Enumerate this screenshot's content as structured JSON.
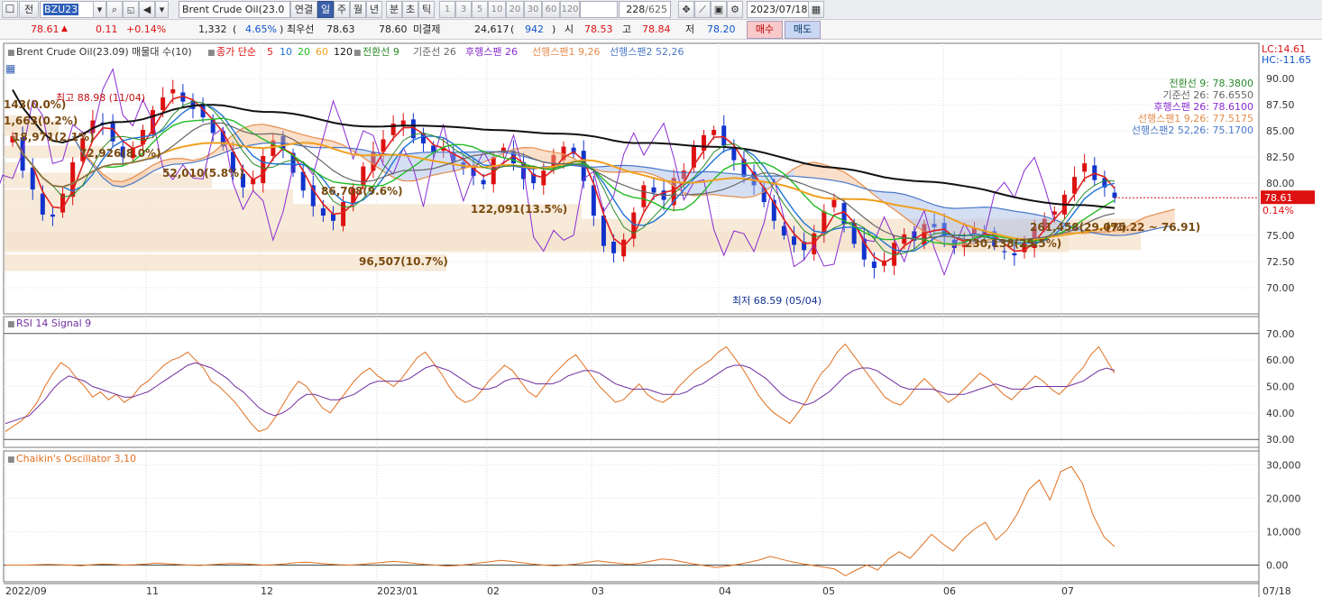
{
  "toolbar": {
    "mode_label": "전",
    "symbol_code": "BZU23",
    "symbol_name": "Brent Crude Oil(23.0",
    "link_label": "연결",
    "periods": [
      "일",
      "주",
      "월",
      "년",
      "분",
      "초",
      "틱"
    ],
    "intervals": [
      "1",
      "3",
      "5",
      "10",
      "20",
      "30",
      "60",
      "120"
    ],
    "count": "228",
    "total": "/625",
    "date": "2023/07/18"
  },
  "quote": {
    "price": "78.61",
    "change": "0.11",
    "change_pct": "+0.14%",
    "volume": "1,332",
    "vol_pct": "4.65%",
    "best_label": "최우선",
    "best_ask": "78.63",
    "best_bid": "78.60",
    "oi_label": "미결제",
    "oi": "24,617",
    "oi_chg": "942",
    "open_label": "시",
    "open": "78.53",
    "high_label": "고",
    "high": "78.84",
    "low_label": "저",
    "low": "78.20",
    "buy_label": "매수",
    "sell_label": "매도"
  },
  "colors": {
    "up": "#dd1111",
    "down": "#1133cc",
    "ma5": "#e02020",
    "ma10": "#1f74d6",
    "ma20": "#22bb22",
    "ma60": "#f0a020",
    "ma120": "#111111",
    "tenkan": "#2b8a2b",
    "kijun": "#666666",
    "chikou": "#8a2bd2",
    "spanA": "#e58c4a",
    "spanB": "#4a78c8",
    "volprofile": "#f4e3cc",
    "rsi": "#e07020",
    "signal": "#7030a0",
    "chaikin": "#e07020"
  },
  "chart_data": [
    {
      "type": "line",
      "title": "Brent Crude Oil(23.09) 매물대 수(10)",
      "legend": {
        "ma_title": "종가 단순",
        "ma": [
          "5",
          "10",
          "20",
          "60",
          "120"
        ],
        "ichimoku": [
          "전환선 9",
          "기준선 26",
          "후행스팬 26",
          "선행스팬1 9,26",
          "선행스팬2 52,26"
        ]
      },
      "lc_hc": [
        "LC:14.61",
        "HC:-11.65"
      ],
      "ylim": [
        67.5,
        92
      ],
      "y_ticks": [
        "90.00",
        "87.50",
        "85.00",
        "82.50",
        "80.00",
        "75.00",
        "72.50",
        "70.00"
      ],
      "current_price": "78.61",
      "current_pct": "0.14%",
      "x_ticks": [
        "2022/09",
        "11",
        "12",
        "2023/01",
        "02",
        "03",
        "04",
        "05",
        "06",
        "07",
        "07/18"
      ],
      "indicator_values": [
        "전환선 9: 78.3800",
        "기준선 26: 76.6550",
        "후행스팬 26: 78.6100",
        "선행스팬1 9,26: 77.5175",
        "선행스팬2 52,26: 75.1700"
      ],
      "volume_profile": [
        {
          "low": 80.5,
          "high": 82.0,
          "label": "143(0.0%)"
        },
        {
          "low": 85.0,
          "high": 86.5,
          "label": "1,663(0.2%)"
        },
        {
          "low": 84.5,
          "high": 86.0,
          "label": "18,971(2.1%)"
        },
        {
          "low": 82.4,
          "high": 83.6,
          "label": "72,926(8.0%)"
        },
        {
          "low": 79.5,
          "high": 81.0,
          "label": "52,010(5.8%)"
        },
        {
          "low": 78.0,
          "high": 79.4,
          "label": "86,708(9.6%)"
        },
        {
          "low": 76.6,
          "high": 78.0,
          "label": "122,091(13.5%)"
        },
        {
          "low": 73.6,
          "high": 76.6,
          "label": "261,458(29.0%)"
        },
        {
          "low": 73.4,
          "high": 75.4,
          "label": "230,138(25.5%)"
        },
        {
          "low": 71.6,
          "high": 73.2,
          "label": "96,507(10.7%)"
        }
      ],
      "range_label": "(75.22 ~ 76.91)",
      "max_label": "최고 88.98 (11/04)",
      "min_label": "최저 68.59 (05/04)",
      "close_series": [
        84.5,
        81.2,
        79.4,
        77.0,
        76.8,
        79.0,
        82.0,
        84.3,
        86.0,
        85.6,
        84.0,
        82.5,
        83.4,
        85.1,
        87.0,
        88.2,
        88.98,
        87.8,
        87.1,
        86.3,
        84.8,
        83.5,
        81.0,
        79.6,
        80.4,
        82.6,
        84.1,
        83.2,
        81.0,
        79.3,
        77.8,
        76.9,
        76.4,
        78.2,
        79.5,
        81.6,
        83.0,
        84.2,
        85.7,
        86.0,
        84.3,
        83.8,
        82.9,
        83.4,
        82.1,
        81.4,
        80.7,
        79.9,
        82.5,
        83.4,
        81.9,
        80.4,
        80.0,
        81.2,
        82.7,
        83.5,
        82.8,
        80.2,
        76.9,
        74.0,
        73.3,
        74.6,
        77.2,
        79.8,
        79.1,
        78.4,
        80.5,
        81.2,
        83.5,
        84.6,
        85.1,
        83.6,
        82.2,
        80.6,
        79.8,
        78.2,
        76.4,
        75.0,
        74.1,
        73.6,
        75.2,
        77.3,
        78.4,
        76.1,
        74.2,
        72.7,
        71.9,
        72.6,
        74.3,
        75.1,
        74.5,
        76.1,
        75.8,
        74.9,
        73.8,
        74.6,
        75.7,
        75.2,
        74.0,
        73.4,
        73.1,
        74.2,
        75.8,
        76.6,
        77.3,
        78.9,
        80.6,
        81.9,
        80.3,
        79.6,
        78.6
      ]
    },
    {
      "type": "line",
      "title": "RSI 14  Signal 9",
      "ylim": [
        27,
        73
      ],
      "y_ticks": [
        "70.00",
        "60.00",
        "50.00",
        "40.00",
        "30.00"
      ],
      "rsi": [
        33,
        35,
        37,
        40,
        44,
        50,
        55,
        59,
        57,
        53,
        50,
        46,
        48,
        45,
        47,
        44,
        46,
        50,
        52,
        55,
        58,
        60,
        61,
        63,
        60,
        57,
        52,
        50,
        47,
        44,
        40,
        36,
        33,
        34,
        38,
        43,
        48,
        52,
        50,
        46,
        42,
        40,
        44,
        48,
        52,
        55,
        57,
        54,
        52,
        50,
        53,
        57,
        61,
        63,
        59,
        55,
        50,
        46,
        44,
        45,
        48,
        52,
        55,
        58,
        56,
        52,
        48,
        46,
        50,
        54,
        57,
        60,
        62,
        58,
        54,
        50,
        47,
        44,
        45,
        48,
        51,
        47,
        45,
        44,
        46,
        50,
        53,
        56,
        58,
        60,
        63,
        65,
        61,
        57,
        52,
        47,
        43,
        40,
        38,
        36,
        40,
        44,
        50,
        55,
        58,
        63,
        66,
        62,
        58,
        54,
        50,
        46,
        44,
        43,
        46,
        50,
        53,
        50,
        47,
        44,
        46,
        49,
        52,
        55,
        53,
        50,
        47,
        45,
        48,
        51,
        54,
        52,
        49,
        47,
        50,
        54,
        57,
        62,
        65,
        60,
        55
      ],
      "signal": [
        36,
        37,
        38,
        39,
        42,
        45,
        49,
        52,
        54,
        53,
        52,
        50,
        49,
        48,
        47,
        46,
        46,
        47,
        48,
        50,
        52,
        54,
        56,
        58,
        59,
        58,
        57,
        55,
        53,
        50,
        48,
        45,
        42,
        40,
        39,
        40,
        42,
        45,
        47,
        47,
        46,
        45,
        45,
        46,
        47,
        49,
        51,
        52,
        52,
        52,
        52,
        53,
        55,
        57,
        58,
        57,
        56,
        54,
        52,
        50,
        49,
        49,
        50,
        52,
        53,
        53,
        52,
        51,
        51,
        51,
        52,
        54,
        55,
        56,
        56,
        55,
        53,
        51,
        50,
        49,
        49,
        49,
        48,
        47,
        47,
        47,
        48,
        50,
        51,
        53,
        55,
        57,
        58,
        58,
        57,
        55,
        53,
        50,
        47,
        45,
        44,
        43,
        44,
        46,
        48,
        51,
        54,
        56,
        57,
        57,
        56,
        54,
        52,
        50,
        49,
        49,
        49,
        49,
        48,
        47,
        47,
        47,
        48,
        49,
        50,
        51,
        50,
        49,
        49,
        49,
        50,
        50,
        50,
        50,
        50,
        51,
        52,
        54,
        56,
        57,
        56
      ]
    },
    {
      "type": "line",
      "title": "Chaikin's Oscillator 3,10",
      "ylim": [
        -5000,
        32000
      ],
      "y_ticks": [
        "30,000",
        "20,000",
        "10,000",
        "0.00"
      ],
      "values": [
        0,
        0,
        0,
        100,
        200,
        100,
        0,
        -200,
        100,
        300,
        200,
        0,
        100,
        300,
        600,
        400,
        200,
        0,
        -100,
        100,
        300,
        500,
        400,
        200,
        0,
        100,
        400,
        700,
        900,
        600,
        300,
        100,
        0,
        200,
        500,
        800,
        1100,
        900,
        500,
        200,
        0,
        -300,
        -100,
        200,
        600,
        1000,
        1400,
        1100,
        700,
        300,
        0,
        -200,
        0,
        300,
        800,
        1300,
        900,
        500,
        200,
        600,
        1200,
        1800,
        1500,
        900,
        300,
        -200,
        -700,
        -300,
        200,
        800,
        1500,
        2600,
        1800,
        1000,
        400,
        -100,
        -600,
        -1200,
        -3200,
        -1500,
        0,
        -1500,
        1800,
        4000,
        2000,
        5500,
        9200,
        6500,
        4200,
        8000,
        10800,
        12800,
        7500,
        10500,
        15500,
        22500,
        25500,
        19500,
        28000,
        29500,
        24500,
        15000,
        8500,
        5500
      ]
    }
  ]
}
